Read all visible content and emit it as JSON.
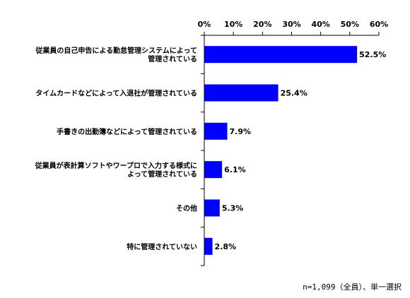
{
  "chart_data": {
    "type": "bar",
    "orientation": "horizontal",
    "categories": [
      [
        "従業員の自己申告による勤怠管理システムによって",
        "管理されている"
      ],
      [
        "タイムカードなどによって入退社が管理されている"
      ],
      [
        "手書きの出勤簿などによって管理されている"
      ],
      [
        "従業員が表計算ソフトやワープロで入力する様式に",
        "よって管理されている"
      ],
      [
        "その他"
      ],
      [
        "特に管理されていない"
      ]
    ],
    "values": [
      52.5,
      25.4,
      7.9,
      6.1,
      5.3,
      2.8
    ],
    "data_labels": [
      "52.5%",
      "25.4%",
      "7.9%",
      "6.1%",
      "5.3%",
      "2.8%"
    ],
    "xlim": [
      0,
      60
    ],
    "ticks": [
      0,
      10,
      20,
      30,
      40,
      50,
      60
    ],
    "tick_labels": [
      "0%",
      "10%",
      "20%",
      "30%",
      "40%",
      "50%",
      "60%"
    ],
    "axis_position": "top",
    "grid": false,
    "bar_color": "#0000ff",
    "note": "n=1,099（全員）、単一選択"
  }
}
